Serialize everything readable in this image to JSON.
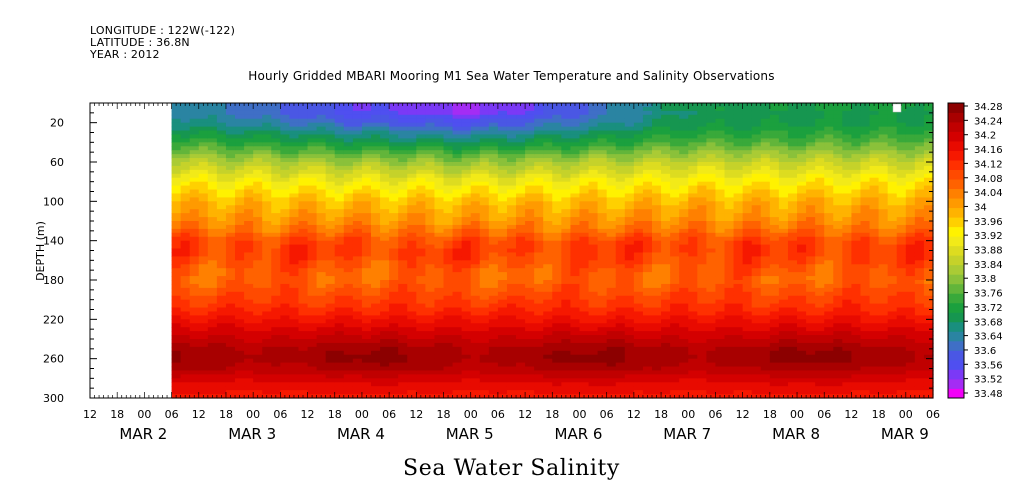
{
  "header": {
    "longitude": "LONGITUDE : 122W(-122)",
    "latitude": "LATITUDE : 36.8N",
    "year": "YEAR : 2012",
    "title": "Hourly Gridded MBARI Mooring M1 Sea Water Temperature and Salinity Observations"
  },
  "footer": {
    "xlabel": "Sea Water Salinity"
  },
  "colors": {
    "band_colors": [
      "#f200f7",
      "#a42cf4",
      "#7b39f6",
      "#4f4ff0",
      "#4a57e4",
      "#3f6fc6",
      "#2a84a2",
      "#198f7e",
      "#169650",
      "#1ba03e",
      "#39a93a",
      "#62b53a",
      "#8ac13a",
      "#aacb35",
      "#c5d22a",
      "#dddc20",
      "#f2ea18",
      "#fff200",
      "#ffd000",
      "#ffb300",
      "#ff9a00",
      "#ff8000",
      "#ff6200",
      "#ff4a00",
      "#ff3000",
      "#f61800",
      "#e80a00",
      "#d40000",
      "#c00000",
      "#a80000",
      "#8c0000"
    ]
  },
  "chart_data": {
    "type": "heatmap",
    "title": "Hourly Gridded MBARI Mooring M1 Sea Water Temperature and Salinity Observations",
    "xlabel": "Sea Water Salinity",
    "ylabel": "DEPTH (m)",
    "y_reversed": true,
    "ylim": [
      300,
      0
    ],
    "yticks": [
      20,
      60,
      100,
      140,
      180,
      220,
      260,
      300
    ],
    "x_time_range_hours": [
      -12,
      174
    ],
    "x_day_labels": [
      {
        "label": "MAR  2",
        "day_start_hour": 0
      },
      {
        "label": "MAR  3",
        "day_start_hour": 24
      },
      {
        "label": "MAR  4",
        "day_start_hour": 48
      },
      {
        "label": "MAR  5",
        "day_start_hour": 72
      },
      {
        "label": "MAR  6",
        "day_start_hour": 96
      },
      {
        "label": "MAR  7",
        "day_start_hour": 120
      },
      {
        "label": "MAR  8",
        "day_start_hour": 144
      },
      {
        "label": "MAR  9",
        "day_start_hour": 168
      }
    ],
    "x_hour_labels": [
      "12",
      "18",
      "00",
      "06",
      "12",
      "18",
      "00",
      "06",
      "12",
      "18",
      "00",
      "06",
      "12",
      "18",
      "00",
      "06",
      "12",
      "18",
      "00",
      "06",
      "12",
      "18",
      "00",
      "06",
      "12",
      "18",
      "00",
      "06",
      "12",
      "18",
      "00",
      "06"
    ],
    "colorbar_labels": [
      "34.28",
      "34.24",
      "34.2",
      "34.16",
      "34.12",
      "34.08",
      "34.04",
      "34",
      "33.96",
      "33.92",
      "33.88",
      "33.84",
      "33.8",
      "33.76",
      "33.72",
      "33.68",
      "33.64",
      "33.6",
      "33.56",
      "33.52",
      "33.48"
    ],
    "colorbar_range": [
      33.48,
      34.28
    ],
    "data_start_hour": 6,
    "depth_levels": [
      10,
      20,
      30,
      40,
      50,
      60,
      70,
      80,
      90,
      100,
      110,
      120,
      130,
      140,
      150,
      160,
      170,
      180,
      190,
      200,
      210,
      220,
      230,
      240,
      250,
      260,
      270,
      280,
      290,
      300
    ],
    "profile_mean": [
      33.64,
      33.66,
      33.7,
      33.74,
      33.79,
      33.84,
      33.88,
      33.92,
      33.95,
      33.98,
      34.0,
      34.02,
      34.05,
      34.09,
      34.1,
      34.09,
      34.07,
      34.06,
      34.08,
      34.1,
      34.12,
      34.15,
      34.18,
      34.21,
      34.24,
      34.25,
      34.23,
      34.19,
      34.16,
      34.14
    ],
    "surface_value_by_day": [
      {
        "day": "MAR 2",
        "value": 33.68
      },
      {
        "day": "MAR 3",
        "value": 33.62
      },
      {
        "day": "MAR 4",
        "value": 33.56
      },
      {
        "day": "MAR 5",
        "value": 33.52
      },
      {
        "day": "MAR 6",
        "value": 33.6
      },
      {
        "day": "MAR 7",
        "value": 33.7
      },
      {
        "day": "MAR 8",
        "value": 33.71
      },
      {
        "day": "MAR 9",
        "value": 33.72
      }
    ]
  }
}
